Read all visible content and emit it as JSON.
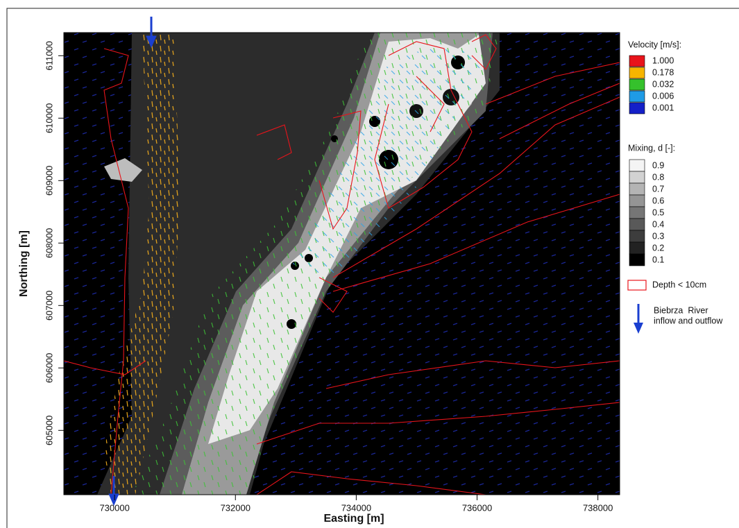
{
  "chart_data": {
    "type": "contour",
    "x_label": "Easting [m]",
    "y_label": "Northing [m]",
    "xlim": [
      729160,
      738360
    ],
    "ylim": [
      603970,
      611370
    ],
    "xticks": [
      730000,
      732000,
      734000,
      736000,
      738000
    ],
    "yticks": [
      605000,
      606000,
      607000,
      608000,
      609000,
      610000,
      611000
    ],
    "velocity_legend": {
      "title": "Velocity [m/s]:",
      "levels": [
        {
          "value": 1,
          "label": "1.000"
        },
        {
          "value": 0.178,
          "label": "0.178"
        },
        {
          "value": 0.032,
          "label": "0.032"
        },
        {
          "value": 0.006,
          "label": "0.006"
        },
        {
          "value": 0.001,
          "label": "0.001"
        }
      ],
      "colors": [
        "#e8141b",
        "#f7b500",
        "#35c12c",
        "#1f9be6",
        "#1420c8"
      ]
    },
    "mixing_legend": {
      "title": "Mixing, d [-]:",
      "levels": [
        0.9,
        0.8,
        0.7,
        0.6,
        0.5,
        0.4,
        0.3,
        0.2,
        0.1
      ],
      "colors": [
        "#f4f4f4",
        "#d2d2d2",
        "#b4b4b4",
        "#959595",
        "#767676",
        "#595959",
        "#3d3d3d",
        "#222222",
        "#000000"
      ]
    },
    "depth_legend": {
      "label": "Depth < 10cm",
      "color": "#e8141b"
    },
    "river_legend": {
      "lines": [
        "Biebrza  River",
        "inflow and outflow"
      ],
      "color": "#1a3fd0"
    }
  }
}
